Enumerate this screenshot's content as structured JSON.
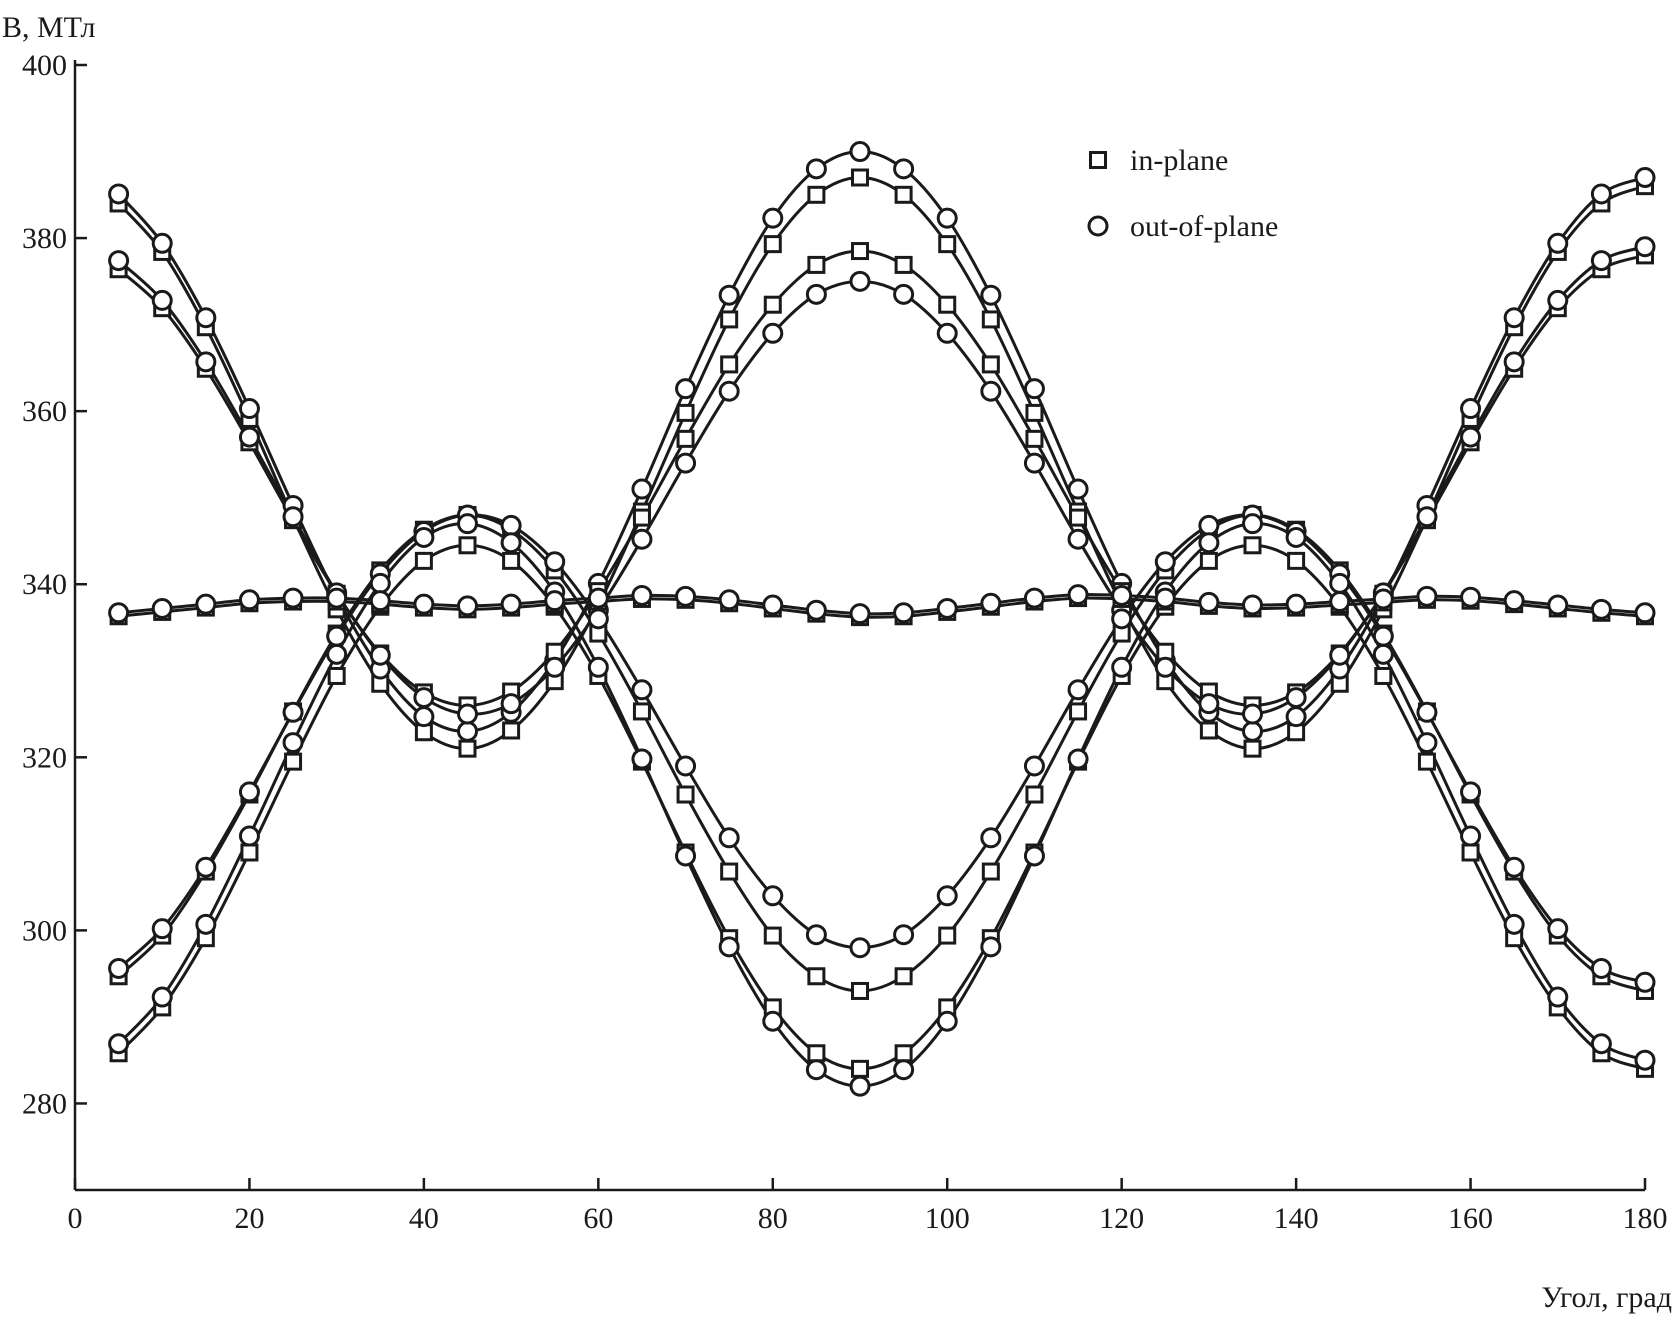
{
  "chart_data": {
    "type": "line-scatter",
    "y_label": "B, МТл",
    "x_label": "Угол, град",
    "xlim": [
      0,
      180
    ],
    "xticks": [
      0,
      20,
      40,
      60,
      80,
      100,
      120,
      140,
      160,
      180
    ],
    "ylim": [
      270,
      400
    ],
    "yticks": [
      280,
      300,
      320,
      340,
      360,
      380,
      400
    ],
    "grid": false,
    "color": "#1a1a1a",
    "legend": [
      {
        "label": "in-plane",
        "marker": "square"
      },
      {
        "label": "out-of-plane",
        "marker": "circle"
      }
    ],
    "x": [
      5,
      10,
      15,
      20,
      25,
      30,
      35,
      40,
      45,
      50,
      55,
      60,
      65,
      70,
      75,
      80,
      85,
      90,
      95,
      100,
      105,
      110,
      115,
      120,
      125,
      130,
      135,
      140,
      145,
      150,
      155,
      160,
      165,
      170,
      175,
      180
    ],
    "series": [
      {
        "marker": "square",
        "values": [
          384.0,
          378.4,
          369.7,
          359.1,
          347.7,
          337.1,
          328.5,
          322.9,
          321.0,
          323.1,
          328.8,
          337.6,
          348.4,
          359.8,
          370.6,
          379.3,
          385.0,
          387.0,
          385.0,
          379.3,
          370.6,
          359.8,
          348.4,
          337.6,
          328.8,
          323.1,
          321.0,
          322.9,
          328.5,
          337.1,
          347.7,
          359.1,
          369.7,
          378.4,
          384.0,
          386.0
        ]
      },
      {
        "marker": "circle",
        "values": [
          385.1,
          379.4,
          370.8,
          360.3,
          349.1,
          338.6,
          330.2,
          324.7,
          323.0,
          325.2,
          331.2,
          340.1,
          351.0,
          362.6,
          373.4,
          382.3,
          388.0,
          390.0,
          388.0,
          382.3,
          373.4,
          362.6,
          351.0,
          340.1,
          331.2,
          325.2,
          323.0,
          324.7,
          330.2,
          338.6,
          349.1,
          360.3,
          370.8,
          379.4,
          385.1,
          387.0
        ]
      },
      {
        "marker": "square",
        "values": [
          376.4,
          371.9,
          364.9,
          356.4,
          347.4,
          338.9,
          332.0,
          327.5,
          326.0,
          327.6,
          332.2,
          339.2,
          347.7,
          356.8,
          365.4,
          372.3,
          376.9,
          378.5,
          376.9,
          372.3,
          365.4,
          356.8,
          347.7,
          339.2,
          332.2,
          327.6,
          326.0,
          327.5,
          332.0,
          338.9,
          347.4,
          356.4,
          364.9,
          371.9,
          376.4,
          378.0
        ]
      },
      {
        "marker": "circle",
        "values": [
          377.4,
          372.8,
          365.7,
          357.0,
          347.8,
          339.0,
          331.8,
          326.9,
          325.0,
          326.2,
          330.4,
          337.0,
          345.2,
          354.0,
          362.3,
          369.0,
          373.5,
          375.0,
          373.5,
          369.0,
          362.3,
          354.0,
          345.2,
          337.0,
          330.4,
          326.2,
          325.0,
          326.9,
          331.8,
          339.0,
          347.8,
          357.0,
          365.7,
          372.8,
          377.4,
          379.0
        ]
      },
      {
        "marker": "square",
        "values": [
          294.7,
          299.4,
          306.8,
          315.7,
          325.3,
          334.3,
          341.6,
          346.3,
          348.0,
          346.3,
          341.6,
          334.3,
          325.3,
          315.7,
          306.8,
          299.4,
          294.7,
          293.0,
          294.7,
          299.4,
          306.8,
          315.7,
          325.3,
          334.3,
          341.6,
          346.3,
          348.0,
          346.3,
          341.6,
          334.3,
          325.3,
          315.7,
          306.8,
          299.4,
          294.7,
          293.0
        ]
      },
      {
        "marker": "circle",
        "values": [
          295.6,
          300.2,
          307.3,
          316.0,
          325.2,
          334.0,
          341.2,
          346.1,
          348.0,
          346.8,
          342.6,
          336.0,
          327.8,
          319.0,
          310.7,
          304.0,
          299.5,
          298.0,
          299.5,
          304.0,
          310.7,
          319.0,
          327.8,
          336.0,
          342.6,
          346.8,
          348.0,
          346.1,
          341.2,
          334.0,
          325.2,
          316.0,
          307.3,
          300.2,
          295.6,
          294.0
        ]
      },
      {
        "marker": "square",
        "values": [
          285.8,
          291.1,
          299.1,
          309.0,
          319.5,
          329.4,
          337.4,
          342.7,
          344.5,
          342.7,
          337.4,
          329.4,
          319.5,
          309.0,
          299.1,
          291.1,
          285.8,
          284.0,
          285.8,
          291.1,
          299.1,
          309.0,
          319.5,
          329.4,
          337.4,
          342.7,
          344.5,
          342.7,
          337.4,
          329.4,
          319.5,
          309.0,
          299.1,
          291.1,
          285.8,
          284.0
        ]
      },
      {
        "marker": "circle",
        "values": [
          286.9,
          292.3,
          300.7,
          310.9,
          321.7,
          331.9,
          340.1,
          345.4,
          347.0,
          344.8,
          339.1,
          330.4,
          319.8,
          308.6,
          298.1,
          289.5,
          283.9,
          282.0,
          283.9,
          289.5,
          298.1,
          308.6,
          319.8,
          330.4,
          339.1,
          344.8,
          347.0,
          345.4,
          340.1,
          331.9,
          321.7,
          310.9,
          300.7,
          292.3,
          286.9,
          285.0
        ]
      },
      {
        "marker": "square",
        "values": [
          336.3,
          336.8,
          337.3,
          337.8,
          338.0,
          338.0,
          337.7,
          337.3,
          337.1,
          337.3,
          337.7,
          338.0,
          338.3,
          338.2,
          337.8,
          337.2,
          336.6,
          336.2,
          336.3,
          336.8,
          337.4,
          338.0,
          338.4,
          338.3,
          338.0,
          337.5,
          337.2,
          337.3,
          337.6,
          337.9,
          338.2,
          338.1,
          337.7,
          337.2,
          336.7,
          336.3
        ]
      },
      {
        "marker": "circle",
        "values": [
          336.7,
          337.2,
          337.7,
          338.2,
          338.4,
          338.4,
          338.1,
          337.7,
          337.5,
          337.7,
          338.1,
          338.4,
          338.7,
          338.6,
          338.2,
          337.6,
          337.0,
          336.6,
          336.7,
          337.2,
          337.8,
          338.4,
          338.8,
          338.7,
          338.4,
          337.9,
          337.6,
          337.7,
          338.0,
          338.3,
          338.6,
          338.5,
          338.1,
          337.6,
          337.1,
          336.7
        ]
      }
    ]
  }
}
